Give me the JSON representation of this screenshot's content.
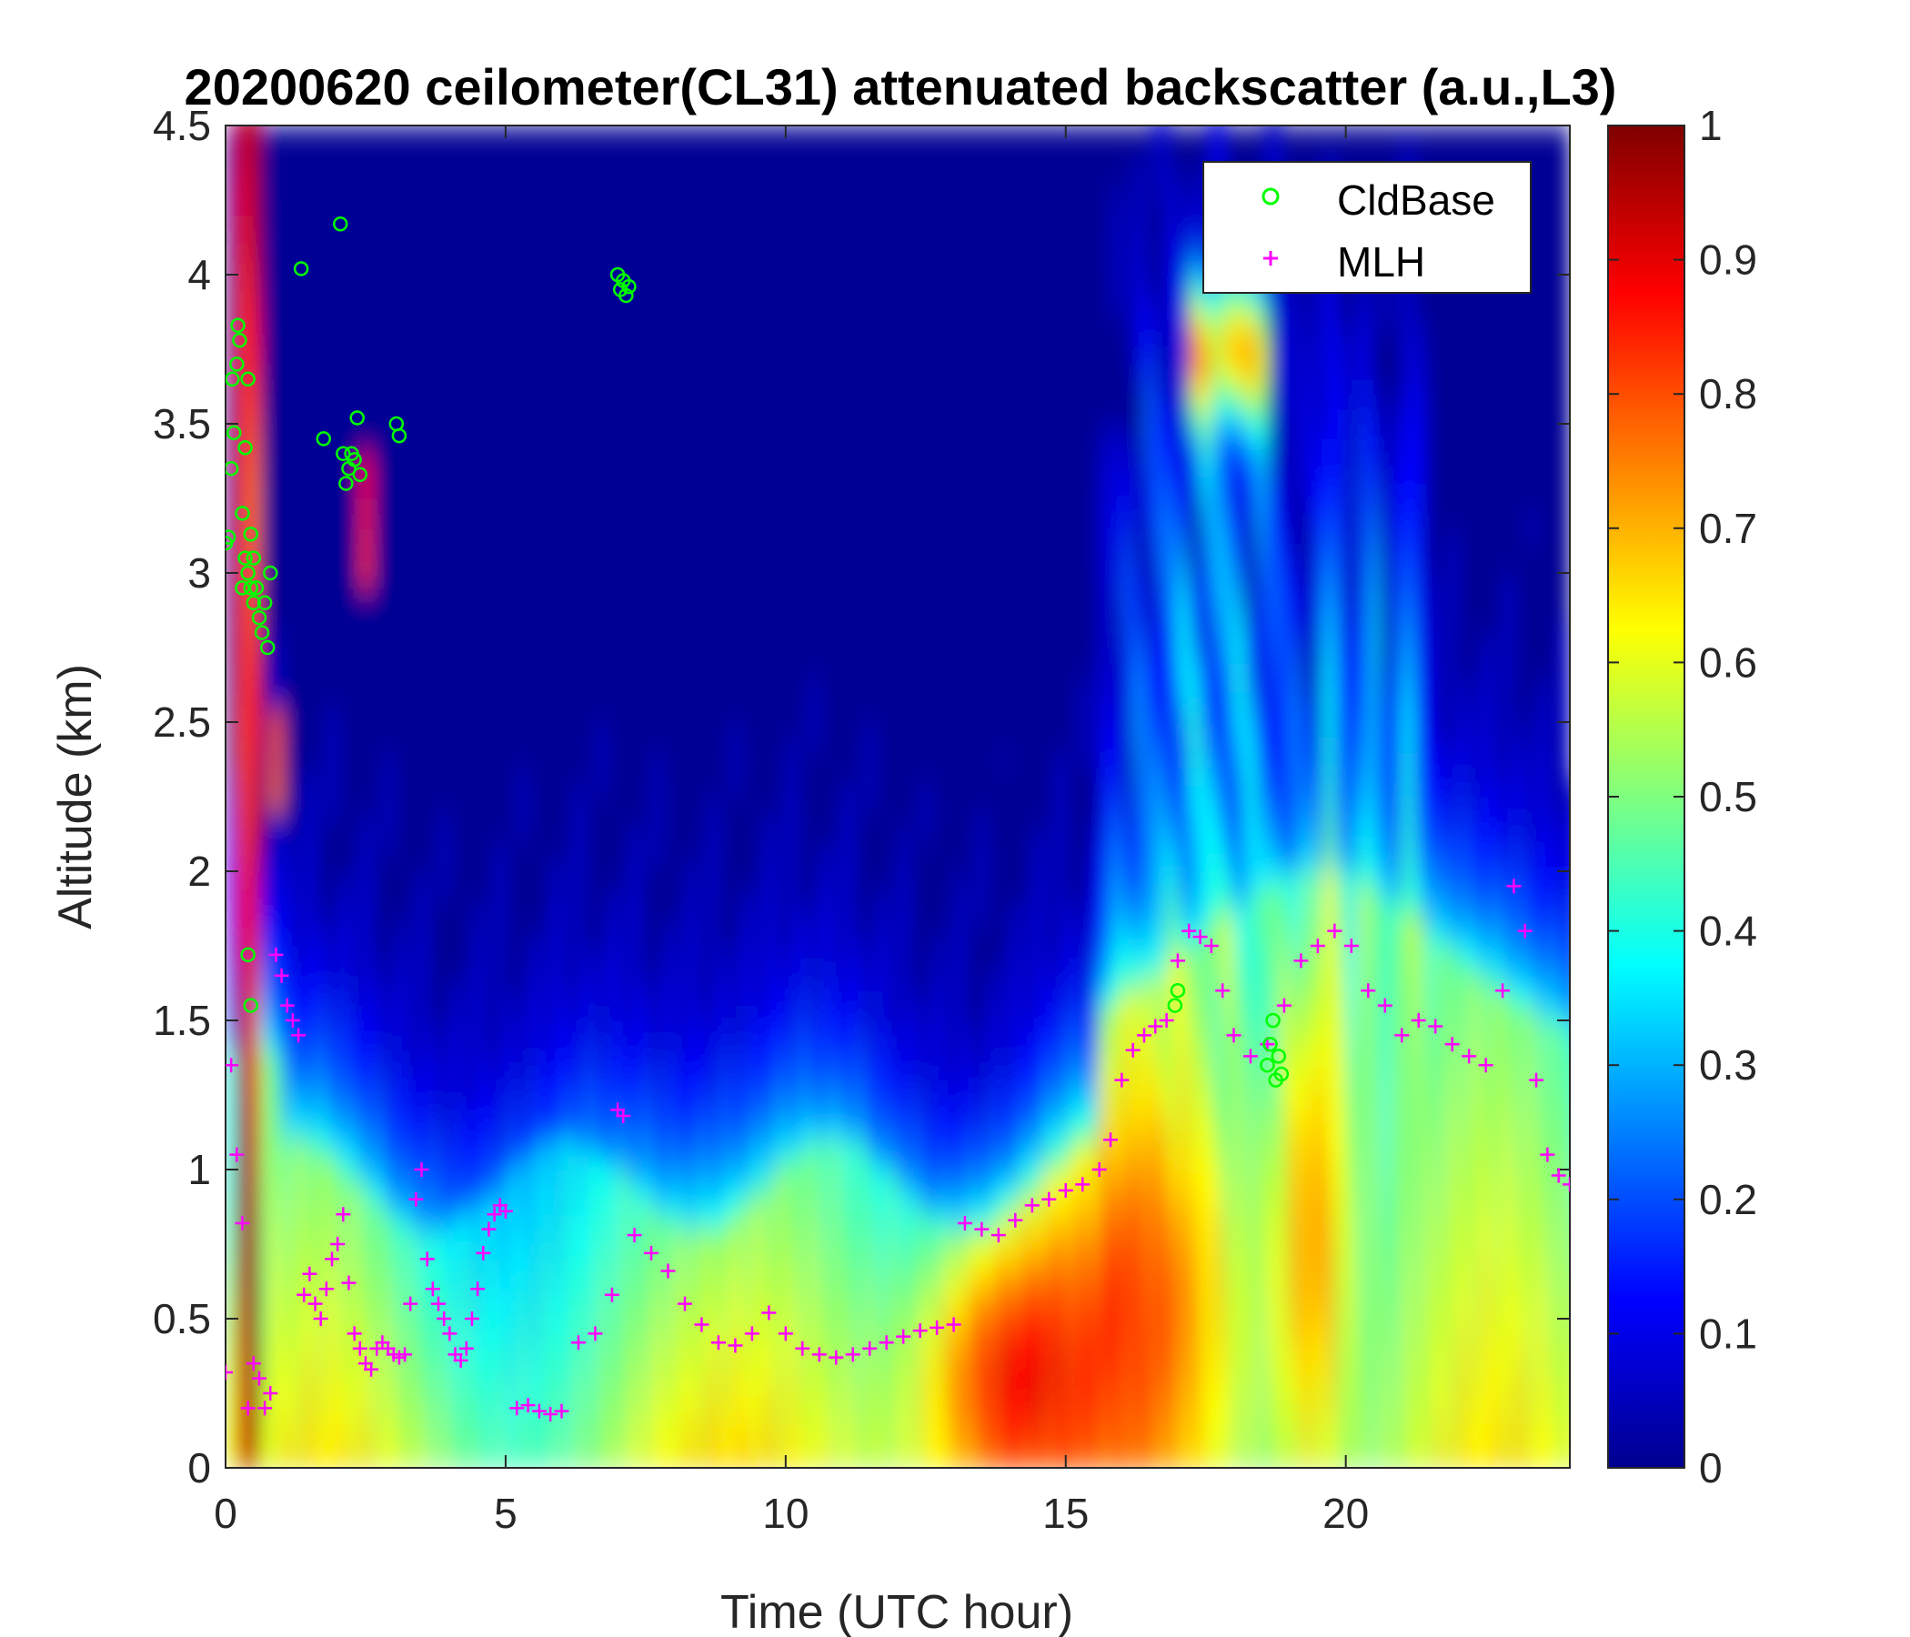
{
  "chart_data": {
    "type": "heatmap",
    "title": "20200620 ceilometer(CL31) attenuated backscatter (a.u.,L3)",
    "xlabel": "Time (UTC hour)",
    "ylabel": "Altitude (km)",
    "xlim": [
      0,
      24
    ],
    "ylim": [
      0,
      4.5
    ],
    "xticks": [
      "0",
      "5",
      "10",
      "15",
      "20"
    ],
    "yticks": [
      "0",
      "0.5",
      "1",
      "1.5",
      "2",
      "2.5",
      "3",
      "3.5",
      "4",
      "4.5"
    ],
    "colorbar": {
      "colormap": "jet",
      "range": [
        0,
        1
      ],
      "ticks": [
        "0",
        "0.1",
        "0.2",
        "0.3",
        "0.4",
        "0.5",
        "0.6",
        "0.7",
        "0.8",
        "0.9",
        "1"
      ]
    },
    "legend": {
      "placement": "top-right",
      "entries": [
        {
          "label": "CldBase",
          "marker": "circle",
          "color": "#00ff00"
        },
        {
          "label": "MLH",
          "marker": "plus",
          "color": "#ff00ff"
        }
      ]
    },
    "colors": {
      "cldbase": "#00ff00",
      "mlh": "#ff00ff"
    },
    "series": [
      {
        "name": "CldBase",
        "marker": "circle",
        "x": [
          0.0,
          0.05,
          0.1,
          0.12,
          0.15,
          0.2,
          0.22,
          0.25,
          0.3,
          0.3,
          0.35,
          0.35,
          0.4,
          0.4,
          0.45,
          0.45,
          0.5,
          0.5,
          0.55,
          0.6,
          0.65,
          0.7,
          0.75,
          0.8,
          0.4,
          0.45,
          1.35,
          2.05,
          1.75,
          2.1,
          2.15,
          2.2,
          2.25,
          2.3,
          2.35,
          2.4,
          3.05,
          3.1,
          7.0,
          7.05,
          7.1,
          7.15,
          7.2,
          16.95,
          17.0,
          18.6,
          18.65,
          18.7,
          18.75,
          18.8,
          18.85
        ],
        "y": [
          3.1,
          3.12,
          3.35,
          3.65,
          3.47,
          3.7,
          3.83,
          3.78,
          3.2,
          2.95,
          3.42,
          3.05,
          3.65,
          3.0,
          2.95,
          3.13,
          2.9,
          3.05,
          2.95,
          2.85,
          2.8,
          2.9,
          2.75,
          3.0,
          1.72,
          1.55,
          4.02,
          4.17,
          3.45,
          3.4,
          3.3,
          3.35,
          3.4,
          3.38,
          3.52,
          3.33,
          3.5,
          3.46,
          4.0,
          3.95,
          3.98,
          3.93,
          3.96,
          1.55,
          1.6,
          1.35,
          1.42,
          1.5,
          1.3,
          1.38,
          1.32
        ]
      },
      {
        "name": "MLH",
        "marker": "plus",
        "x": [
          0.0,
          0.1,
          0.2,
          0.3,
          0.4,
          0.5,
          0.6,
          0.7,
          0.8,
          0.9,
          1.0,
          1.1,
          1.2,
          1.3,
          1.4,
          1.5,
          1.6,
          1.7,
          1.8,
          1.9,
          2.0,
          2.1,
          2.2,
          2.3,
          2.4,
          2.5,
          2.6,
          2.7,
          2.8,
          2.9,
          3.0,
          3.1,
          3.2,
          3.3,
          3.4,
          3.5,
          3.6,
          3.7,
          3.8,
          3.9,
          4.0,
          4.1,
          4.2,
          4.3,
          4.4,
          4.5,
          4.6,
          4.7,
          4.8,
          4.9,
          5.0,
          5.2,
          5.4,
          5.6,
          5.8,
          6.0,
          6.3,
          6.6,
          6.9,
          7.0,
          7.1,
          7.3,
          7.6,
          7.9,
          8.2,
          8.5,
          8.8,
          9.1,
          9.4,
          9.7,
          10.0,
          10.3,
          10.6,
          10.9,
          11.2,
          11.5,
          11.8,
          12.1,
          12.4,
          12.7,
          13.0,
          13.2,
          13.5,
          13.8,
          14.1,
          14.4,
          14.7,
          15.0,
          15.3,
          15.6,
          15.8,
          16.0,
          16.2,
          16.4,
          16.6,
          16.8,
          17.0,
          17.2,
          17.4,
          17.6,
          17.8,
          18.0,
          18.3,
          18.6,
          18.9,
          19.2,
          19.5,
          19.8,
          20.1,
          20.4,
          20.7,
          21.0,
          21.3,
          21.6,
          21.9,
          22.2,
          22.5,
          22.8,
          23.0,
          23.2,
          23.4,
          23.6,
          23.8,
          24.0
        ],
        "y": [
          0.32,
          1.35,
          1.05,
          0.82,
          0.2,
          0.35,
          0.3,
          0.2,
          0.25,
          1.72,
          1.65,
          1.55,
          1.5,
          1.45,
          0.58,
          0.65,
          0.55,
          0.5,
          0.6,
          0.7,
          0.75,
          0.85,
          0.62,
          0.45,
          0.4,
          0.35,
          0.33,
          0.4,
          0.42,
          0.4,
          0.38,
          0.37,
          0.38,
          0.55,
          0.9,
          1.0,
          0.7,
          0.6,
          0.55,
          0.5,
          0.45,
          0.38,
          0.36,
          0.4,
          0.5,
          0.6,
          0.72,
          0.8,
          0.85,
          0.88,
          0.86,
          0.2,
          0.21,
          0.19,
          0.18,
          0.19,
          0.42,
          0.45,
          0.58,
          1.2,
          1.18,
          0.78,
          0.72,
          0.66,
          0.55,
          0.48,
          0.42,
          0.41,
          0.45,
          0.52,
          0.45,
          0.4,
          0.38,
          0.37,
          0.38,
          0.4,
          0.42,
          0.44,
          0.46,
          0.47,
          0.48,
          0.82,
          0.8,
          0.78,
          0.83,
          0.88,
          0.9,
          0.93,
          0.95,
          1.0,
          1.1,
          1.3,
          1.4,
          1.45,
          1.48,
          1.5,
          1.7,
          1.8,
          1.78,
          1.75,
          1.6,
          1.45,
          1.38,
          1.42,
          1.55,
          1.7,
          1.75,
          1.8,
          1.75,
          1.6,
          1.55,
          1.45,
          1.5,
          1.48,
          1.42,
          1.38,
          1.35,
          1.6,
          1.95,
          1.8,
          1.3,
          1.05,
          0.98,
          0.95
        ]
      }
    ]
  }
}
